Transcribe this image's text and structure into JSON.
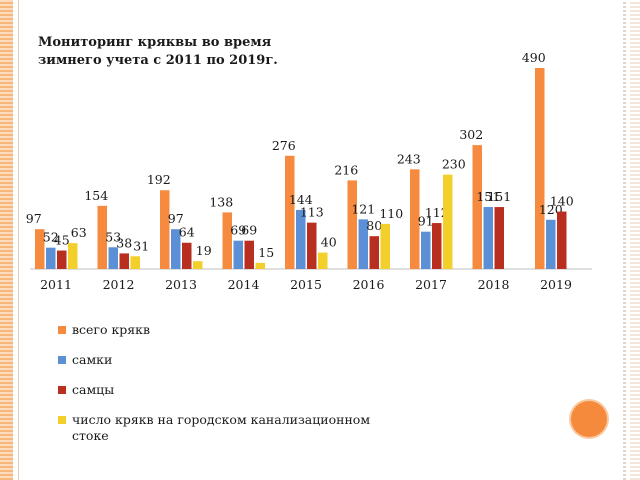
{
  "chart_data": {
    "type": "bar",
    "title": "Мониторинг кряквы во время зимнего учета с 2011 по 2019г.",
    "categories": [
      "2011",
      "2012",
      "2013",
      "2014",
      "2015",
      "2016",
      "2017",
      "2018",
      "2019"
    ],
    "series": [
      {
        "name": "всего крякв",
        "color": "#f68a3e",
        "values": [
          97,
          154,
          192,
          138,
          276,
          216,
          243,
          302,
          490
        ]
      },
      {
        "name": "самки",
        "color": "#5b8fd6",
        "values": [
          52,
          53,
          97,
          69,
          144,
          121,
          91,
          151,
          120
        ]
      },
      {
        "name": "самцы",
        "color": "#b82e1f",
        "values": [
          45,
          38,
          64,
          69,
          113,
          80,
          112,
          151,
          140
        ]
      },
      {
        "name": "число крякв на городском канализационном стоке",
        "color": "#f2cf2a",
        "values": [
          63,
          31,
          19,
          15,
          40,
          110,
          230,
          null,
          null
        ]
      }
    ],
    "ylim": [
      0,
      500
    ],
    "grid": false,
    "legend_position": "bottom"
  }
}
